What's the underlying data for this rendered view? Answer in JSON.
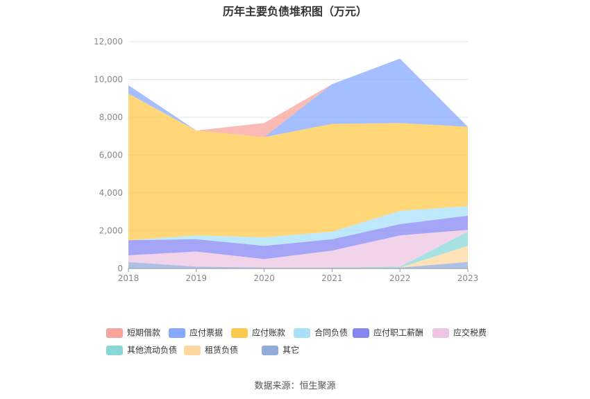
{
  "source": "数据来源：恒生聚源",
  "chart_data": {
    "type": "area",
    "title": "历年主要负债堆积图（万元）",
    "xlabel": "",
    "ylabel": "",
    "ylim": [
      0,
      12000
    ],
    "yticks": [
      "0",
      "2,000",
      "4,000",
      "6,000",
      "8,000",
      "10,000",
      "12,000"
    ],
    "categories": [
      "2018",
      "2019",
      "2020",
      "2021",
      "2022",
      "2023"
    ],
    "grid": true,
    "legend_position": "bottom",
    "series": [
      {
        "name": "其它",
        "color": "#91acdb",
        "values": [
          350,
          100,
          50,
          50,
          50,
          350
        ]
      },
      {
        "name": "租赁负债",
        "color": "#ffd8a0",
        "values": [
          0,
          0,
          0,
          0,
          0,
          850
        ]
      },
      {
        "name": "其他流动负债",
        "color": "#88d8d8",
        "values": [
          0,
          0,
          0,
          0,
          50,
          750
        ]
      },
      {
        "name": "应交税费",
        "color": "#eec5e3",
        "values": [
          350,
          800,
          450,
          900,
          1650,
          100
        ]
      },
      {
        "name": "应付职工薪酬",
        "color": "#8787f4",
        "values": [
          800,
          650,
          700,
          600,
          600,
          750
        ]
      },
      {
        "name": "合同负债",
        "color": "#a8e0fa",
        "values": [
          0,
          200,
          450,
          400,
          700,
          500
        ]
      },
      {
        "name": "应付账款",
        "color": "#ffc94b",
        "values": [
          7750,
          5550,
          5300,
          5700,
          4650,
          4200
        ]
      },
      {
        "name": "应付票据",
        "color": "#86a8ff",
        "values": [
          450,
          0,
          0,
          2100,
          3400,
          0
        ]
      },
      {
        "name": "短期借款",
        "color": "#f8a49c",
        "values": [
          0,
          0,
          750,
          0,
          0,
          0
        ]
      }
    ],
    "legend_order": [
      "短期借款",
      "应付票据",
      "应付账款",
      "合同负债",
      "应付职工薪酬",
      "应交税费",
      "其他流动负债",
      "租赁负债",
      "其它"
    ]
  }
}
